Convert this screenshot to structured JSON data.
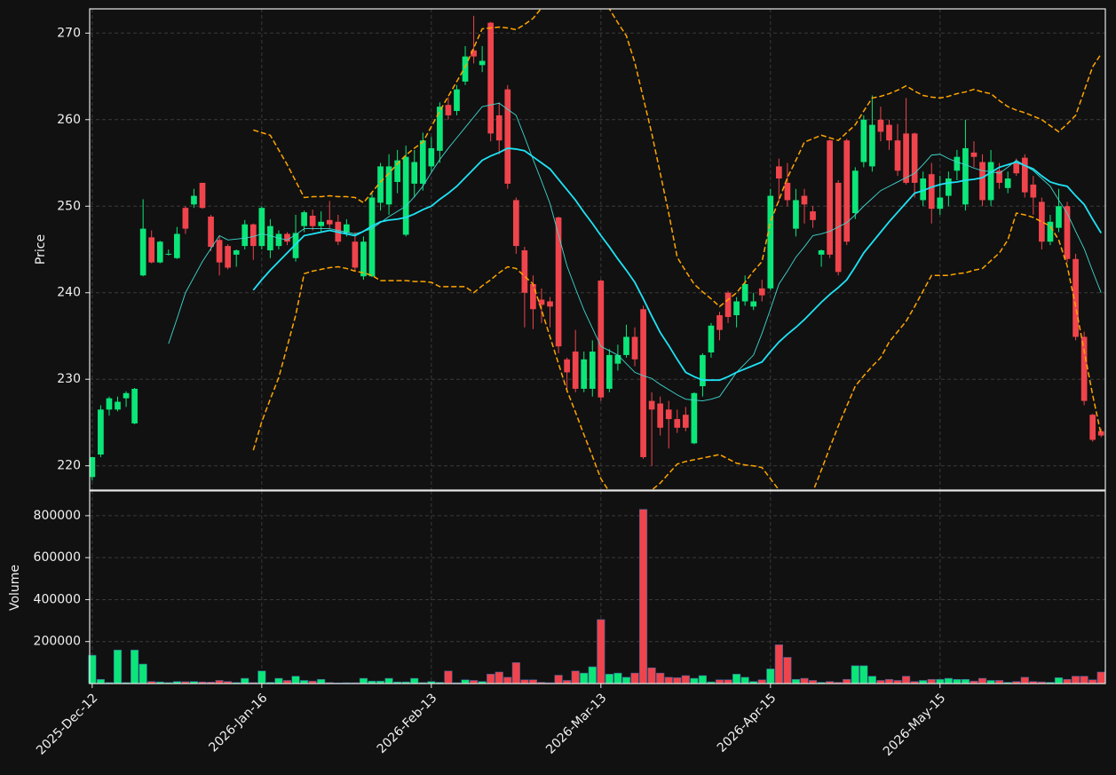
{
  "chart_data": {
    "type": "candlestick",
    "categories": [
      "2025-Dec-12",
      null,
      null,
      null,
      null,
      null,
      null,
      null,
      null,
      null,
      null,
      null,
      null,
      null,
      null,
      null,
      null,
      null,
      null,
      null,
      "2026-Jan-16",
      null,
      null,
      null,
      null,
      null,
      null,
      null,
      null,
      null,
      null,
      null,
      null,
      null,
      null,
      null,
      null,
      null,
      null,
      null,
      "2026-Feb-13",
      null,
      null,
      null,
      null,
      null,
      null,
      null,
      null,
      null,
      null,
      null,
      null,
      null,
      null,
      null,
      null,
      null,
      null,
      null,
      "2026-Mar-13",
      null,
      null,
      null,
      null,
      null,
      null,
      null,
      null,
      null,
      null,
      null,
      null,
      null,
      null,
      null,
      null,
      null,
      null,
      null,
      "2026-Apr-15",
      null,
      null,
      null,
      null,
      null,
      null,
      null,
      null,
      null,
      null,
      null,
      null,
      null,
      null,
      null,
      null,
      null,
      null,
      null,
      "2026-May-15",
      null,
      null,
      null,
      null,
      null,
      null,
      null,
      null,
      null,
      null,
      null,
      null,
      null,
      null,
      null,
      null,
      null,
      null,
      null
    ],
    "open": [
      218.7,
      221.3,
      226.5,
      226.5,
      227.8,
      224.9,
      242.0,
      246.4,
      243.5,
      244.4,
      244.0,
      249.8,
      250.2,
      252.7,
      248.8,
      246.1,
      245.4,
      244.4,
      245.4,
      247.9,
      245.4,
      244.9,
      245.4,
      246.8,
      244.0,
      247.7,
      248.9,
      247.7,
      248.4,
      248.2,
      246.9,
      245.9,
      241.9,
      241.9,
      250.4,
      250.2,
      252.8,
      246.7,
      252.6,
      252.6,
      254.6,
      256.4,
      261.7,
      261.0,
      264.4,
      268.0,
      266.3,
      271.2,
      260.5,
      263.5,
      250.7,
      244.9,
      241.0,
      239.2,
      239.0,
      248.7,
      232.3,
      233.2,
      228.9,
      228.9,
      241.4,
      228.9,
      231.8,
      232.8,
      234.9,
      238.1,
      227.5,
      227.2,
      226.5,
      225.4,
      225.9,
      222.6,
      229.2,
      233.1,
      237.4,
      240.0,
      237.4,
      239.0,
      238.4,
      240.5,
      240.5,
      254.6,
      252.7,
      247.4,
      251.2,
      249.4,
      244.4,
      257.6,
      252.7,
      257.6,
      249.2,
      255.1,
      254.6,
      260.0,
      259.4,
      257.6,
      258.4,
      258.4,
      250.7,
      253.7,
      249.7,
      251.2,
      254.1,
      250.2,
      256.2,
      255.1,
      250.7,
      254.1,
      252.1,
      255.1,
      255.6,
      252.5,
      250.5,
      245.9,
      247.5,
      250.0,
      243.9,
      234.9,
      225.9,
      224.0
    ],
    "high": [
      221.0,
      227.0,
      228.0,
      228.0,
      228.6,
      229.0,
      250.8,
      247.2,
      246.0,
      245.0,
      247.6,
      250.0,
      252.0,
      252.7,
      249.0,
      246.6,
      245.6,
      245.0,
      248.4,
      248.0,
      250.0,
      248.5,
      247.2,
      247.0,
      249.0,
      249.5,
      249.6,
      249.4,
      250.6,
      249.0,
      248.5,
      247.0,
      246.5,
      251.5,
      255.0,
      256.0,
      256.5,
      257.0,
      256.5,
      258.5,
      258.0,
      262.0,
      262.6,
      264.0,
      268.5,
      272.0,
      268.5,
      271.3,
      262.0,
      264.0,
      251.0,
      245.3,
      242.0,
      240.5,
      239.5,
      248.8,
      232.5,
      235.7,
      233.2,
      234.5,
      241.5,
      233.5,
      234.0,
      236.3,
      236.0,
      238.5,
      228.5,
      228.0,
      227.5,
      226.5,
      226.8,
      228.5,
      233.0,
      236.5,
      237.8,
      240.2,
      239.5,
      242.0,
      240.0,
      241.5,
      252.0,
      255.5,
      255.0,
      252.0,
      252.0,
      250.0,
      245.0,
      257.7,
      253.0,
      257.8,
      254.5,
      260.5,
      262.8,
      261.5,
      260.0,
      259.5,
      262.5,
      258.5,
      254.0,
      255.0,
      253.5,
      254.0,
      256.5,
      260.0,
      257.5,
      256.0,
      256.5,
      255.0,
      254.0,
      255.5,
      256.0,
      253.5,
      251.0,
      249.0,
      252.0,
      250.5,
      244.5,
      235.5,
      226.0,
      224.3
    ],
    "low": [
      218.3,
      221.0,
      225.8,
      226.3,
      226.8,
      224.8,
      241.9,
      243.4,
      243.4,
      244.3,
      243.9,
      246.8,
      249.8,
      249.7,
      244.8,
      242.0,
      242.7,
      243.0,
      245.0,
      243.8,
      245.0,
      244.0,
      245.0,
      245.5,
      243.6,
      247.0,
      247.2,
      247.0,
      247.5,
      245.5,
      246.5,
      242.5,
      241.5,
      241.8,
      249.5,
      249.0,
      251.5,
      246.5,
      251.0,
      251.8,
      254.0,
      255.0,
      260.0,
      260.5,
      264.0,
      266.5,
      265.5,
      257.5,
      256.0,
      252.0,
      244.5,
      236.0,
      235.8,
      236.5,
      236.0,
      233.0,
      228.5,
      228.5,
      228.5,
      228.0,
      227.5,
      228.5,
      231.0,
      232.5,
      231.5,
      220.8,
      220.0,
      223.5,
      222.0,
      223.8,
      224.0,
      222.5,
      228.0,
      232.5,
      234.5,
      236.5,
      236.0,
      238.5,
      238.0,
      239.0,
      240.3,
      250.5,
      250.0,
      246.5,
      248.0,
      247.5,
      243.0,
      244.0,
      242.0,
      245.5,
      248.5,
      254.5,
      254.0,
      257.5,
      256.5,
      253.5,
      252.5,
      251.0,
      250.0,
      248.0,
      249.0,
      250.0,
      253.0,
      249.5,
      254.5,
      250.0,
      250.0,
      252.0,
      251.5,
      253.5,
      251.0,
      249.0,
      245.0,
      245.5,
      247.0,
      243.5,
      234.5,
      227.0,
      222.8,
      223.3
    ],
    "close": [
      221.0,
      226.5,
      227.8,
      227.4,
      228.4,
      228.9,
      247.4,
      243.5,
      245.9,
      244.5,
      246.8,
      247.4,
      251.2,
      249.8,
      245.3,
      243.5,
      242.9,
      244.9,
      247.9,
      245.4,
      249.8,
      247.7,
      246.8,
      245.9,
      246.9,
      249.3,
      247.7,
      248.2,
      247.9,
      245.9,
      247.9,
      242.9,
      245.9,
      251.0,
      254.6,
      254.6,
      255.3,
      255.7,
      255.1,
      257.6,
      256.7,
      261.5,
      260.5,
      263.5,
      267.3,
      267.3,
      266.8,
      258.4,
      257.6,
      252.6,
      245.4,
      240.0,
      238.1,
      238.6,
      238.4,
      233.8,
      230.8,
      228.9,
      232.3,
      233.2,
      227.9,
      232.8,
      232.8,
      234.9,
      232.3,
      221.0,
      226.5,
      224.4,
      225.4,
      224.4,
      224.4,
      228.4,
      232.8,
      236.2,
      235.7,
      237.2,
      239.0,
      241.0,
      239.0,
      239.7,
      251.2,
      253.2,
      250.7,
      250.7,
      250.2,
      248.4,
      244.9,
      244.4,
      242.4,
      245.9,
      254.1,
      260.0,
      259.4,
      258.6,
      257.6,
      254.1,
      252.7,
      252.7,
      253.2,
      249.7,
      251.0,
      253.2,
      255.7,
      256.7,
      255.7,
      250.7,
      255.1,
      252.7,
      253.2,
      253.8,
      251.6,
      251.0,
      245.9,
      248.2,
      250.0,
      243.9,
      234.9,
      227.5,
      223.0,
      223.5
    ],
    "volume": [
      135000,
      20000,
      5000,
      160000,
      5000,
      160000,
      93000,
      10000,
      8000,
      5000,
      10000,
      9000,
      10000,
      8000,
      7000,
      15000,
      10000,
      5000,
      25000,
      5000,
      60000,
      6000,
      25000,
      15000,
      35000,
      15000,
      12000,
      20000,
      5000,
      3000,
      4000,
      4000,
      25000,
      12000,
      12000,
      25000,
      8000,
      8000,
      25000,
      5000,
      10000,
      6000,
      60000,
      4000,
      18000,
      15000,
      10000,
      45000,
      55000,
      30000,
      100000,
      18000,
      18000,
      6000,
      4000,
      40000,
      15000,
      60000,
      50000,
      80000,
      305000,
      45000,
      50000,
      30000,
      50000,
      830000,
      75000,
      50000,
      30000,
      28000,
      38000,
      25000,
      38000,
      8000,
      18000,
      18000,
      45000,
      30000,
      10000,
      18000,
      70000,
      185000,
      125000,
      20000,
      25000,
      15000,
      6000,
      10000,
      6000,
      20000,
      85000,
      85000,
      35000,
      15000,
      20000,
      15000,
      35000,
      10000,
      15000,
      20000,
      20000,
      25000,
      20000,
      20000,
      12000,
      25000,
      15000,
      15000,
      6000,
      10000,
      30000,
      10000,
      8000,
      6000,
      28000,
      20000,
      35000,
      35000,
      18000,
      55000
    ],
    "up_color": "#0be679",
    "down_color": "#f0444c",
    "lines": [
      {
        "color": "#3fd9d0",
        "linewidth": 0.9,
        "dashed": false,
        "values": [
          null,
          null,
          null,
          null,
          null,
          null,
          null,
          null,
          null,
          234.1,
          237.0,
          240.0,
          241.8,
          243.6,
          245.1,
          246.6,
          246.1,
          246.2,
          246.3,
          246.5,
          246.8,
          246.6,
          246.3,
          246.1,
          246.7,
          247.4,
          247.4,
          247.4,
          247.4,
          247.2,
          247.0,
          246.8,
          247.1,
          247.4,
          248.1,
          248.8,
          249.4,
          250.0,
          251.1,
          252.3,
          253.9,
          255.4,
          256.7,
          257.9,
          259.1,
          260.3,
          261.5,
          261.7,
          261.9,
          261.2,
          260.5,
          258.0,
          255.4,
          252.9,
          250.3,
          246.7,
          243.1,
          240.5,
          238.0,
          235.9,
          233.8,
          233.3,
          232.8,
          231.8,
          230.8,
          230.4,
          230.1,
          229.4,
          228.8,
          228.2,
          227.7,
          227.6,
          227.5,
          227.7,
          228.0,
          229.4,
          230.8,
          231.8,
          232.8,
          235.3,
          238.1,
          241.0,
          242.5,
          244.1,
          245.3,
          246.6,
          246.8,
          247.1,
          247.6,
          248.1,
          249.0,
          250.0,
          250.9,
          251.8,
          252.3,
          252.8,
          253.3,
          253.8,
          254.8,
          255.9,
          256.0,
          255.5,
          255.1,
          254.8,
          254.4,
          254.1,
          254.0,
          253.8,
          254.5,
          255.3,
          254.7,
          254.1,
          253.2,
          252.3,
          250.7,
          249.2,
          247.1,
          245.1,
          242.5,
          240.0
        ]
      },
      {
        "color": "#1ee3f5",
        "linewidth": 1.8,
        "dashed": false,
        "values": [
          null,
          null,
          null,
          null,
          null,
          null,
          null,
          null,
          null,
          null,
          null,
          null,
          null,
          null,
          null,
          null,
          null,
          null,
          null,
          240.3,
          241.5,
          242.6,
          243.6,
          244.6,
          245.6,
          246.6,
          246.8,
          247.0,
          247.2,
          247.0,
          246.8,
          246.6,
          247.1,
          247.7,
          248.2,
          248.4,
          248.5,
          248.7,
          249.1,
          249.6,
          250.0,
          250.8,
          251.5,
          252.3,
          253.3,
          254.3,
          255.3,
          255.8,
          256.2,
          256.7,
          256.6,
          256.4,
          255.7,
          255.0,
          254.3,
          253.1,
          251.9,
          250.7,
          249.3,
          248.0,
          246.6,
          245.3,
          243.9,
          242.6,
          241.2,
          239.3,
          237.3,
          235.4,
          233.9,
          232.3,
          230.8,
          230.3,
          229.9,
          229.9,
          229.9,
          230.3,
          230.8,
          231.2,
          231.6,
          232.0,
          233.2,
          234.3,
          235.2,
          236.0,
          236.9,
          237.9,
          238.9,
          239.8,
          240.6,
          241.5,
          243.0,
          244.6,
          245.8,
          247.0,
          248.2,
          249.3,
          250.4,
          251.5,
          251.8,
          252.2,
          252.5,
          252.7,
          252.8,
          253.0,
          253.1,
          253.3,
          253.9,
          254.5,
          254.8,
          255.1,
          254.7,
          254.3,
          253.5,
          252.8,
          252.5,
          252.3,
          251.2,
          250.2,
          248.5,
          246.9
        ]
      },
      {
        "color": "#ffa500",
        "linewidth": 1.5,
        "dashed": true,
        "values": [
          null,
          null,
          null,
          null,
          null,
          null,
          null,
          null,
          null,
          null,
          null,
          null,
          null,
          null,
          null,
          null,
          null,
          null,
          null,
          258.8,
          258.5,
          258.2,
          256.5,
          254.8,
          252.9,
          251.0,
          251.1,
          251.1,
          251.2,
          251.1,
          251.1,
          251.0,
          250.4,
          251.6,
          252.8,
          253.8,
          254.9,
          255.9,
          256.7,
          257.4,
          259.2,
          261.0,
          262.7,
          264.4,
          266.1,
          268.3,
          270.5,
          270.6,
          270.7,
          270.6,
          270.4,
          271.0,
          271.7,
          272.9,
          274.0,
          274.7,
          275.3,
          276.0,
          275.7,
          275.3,
          275.0,
          272.8,
          271.2,
          269.7,
          266.6,
          262.5,
          258.4,
          253.8,
          249.2,
          244.1,
          242.5,
          241.0,
          240.1,
          239.3,
          238.4,
          239.2,
          240.0,
          241.2,
          242.5,
          243.6,
          248.2,
          250.7,
          253.3,
          255.3,
          257.4,
          257.8,
          258.2,
          257.9,
          257.6,
          258.5,
          259.4,
          261.0,
          262.5,
          262.7,
          263.0,
          263.4,
          263.9,
          263.3,
          262.8,
          262.6,
          262.5,
          262.7,
          263.0,
          263.2,
          263.5,
          263.2,
          263.0,
          262.2,
          261.5,
          261.1,
          260.8,
          260.4,
          260.0,
          259.3,
          258.6,
          259.5,
          260.5,
          263.3,
          266.1,
          267.6
        ]
      },
      {
        "color": "#ffa500",
        "linewidth": 1.5,
        "dashed": true,
        "values": [
          null,
          null,
          null,
          null,
          null,
          null,
          null,
          null,
          null,
          null,
          null,
          null,
          null,
          null,
          null,
          null,
          null,
          null,
          null,
          221.8,
          225.1,
          227.7,
          230.2,
          233.8,
          237.4,
          242.2,
          242.5,
          242.7,
          242.9,
          243.0,
          242.8,
          242.5,
          242.3,
          242.0,
          241.4,
          241.4,
          241.4,
          241.4,
          241.3,
          241.3,
          241.2,
          240.7,
          240.7,
          240.7,
          240.7,
          240.0,
          240.8,
          241.5,
          242.3,
          243.0,
          242.8,
          241.9,
          241.0,
          238.0,
          234.9,
          231.8,
          228.7,
          226.2,
          223.6,
          221.1,
          218.5,
          217.0,
          216.2,
          215.5,
          215.6,
          215.8,
          217.2,
          218.0,
          219.1,
          220.2,
          220.5,
          220.7,
          220.9,
          221.1,
          221.3,
          220.8,
          220.3,
          220.1,
          220.0,
          219.8,
          218.5,
          217.2,
          216.3,
          215.5,
          216.2,
          217.0,
          219.5,
          222.1,
          224.6,
          226.9,
          229.2,
          230.4,
          231.5,
          232.5,
          234.3,
          235.5,
          236.7,
          238.4,
          240.2,
          242.0,
          242.0,
          242.0,
          242.2,
          242.3,
          242.6,
          242.8,
          243.7,
          244.6,
          246.1,
          249.2,
          249.0,
          248.7,
          248.2,
          247.7,
          246.1,
          243.1,
          238.4,
          233.3,
          228.2,
          223.6
        ]
      }
    ],
    "ylabel": "Price",
    "ylim": [
      217.2,
      272.8
    ],
    "yticks": [
      220,
      230,
      240,
      250,
      260,
      270
    ],
    "volume_ylabel": "Volume",
    "volume_ylim": [
      0,
      918000
    ],
    "volume_yticks": [
      200000,
      400000,
      600000,
      800000
    ],
    "grid": true
  }
}
